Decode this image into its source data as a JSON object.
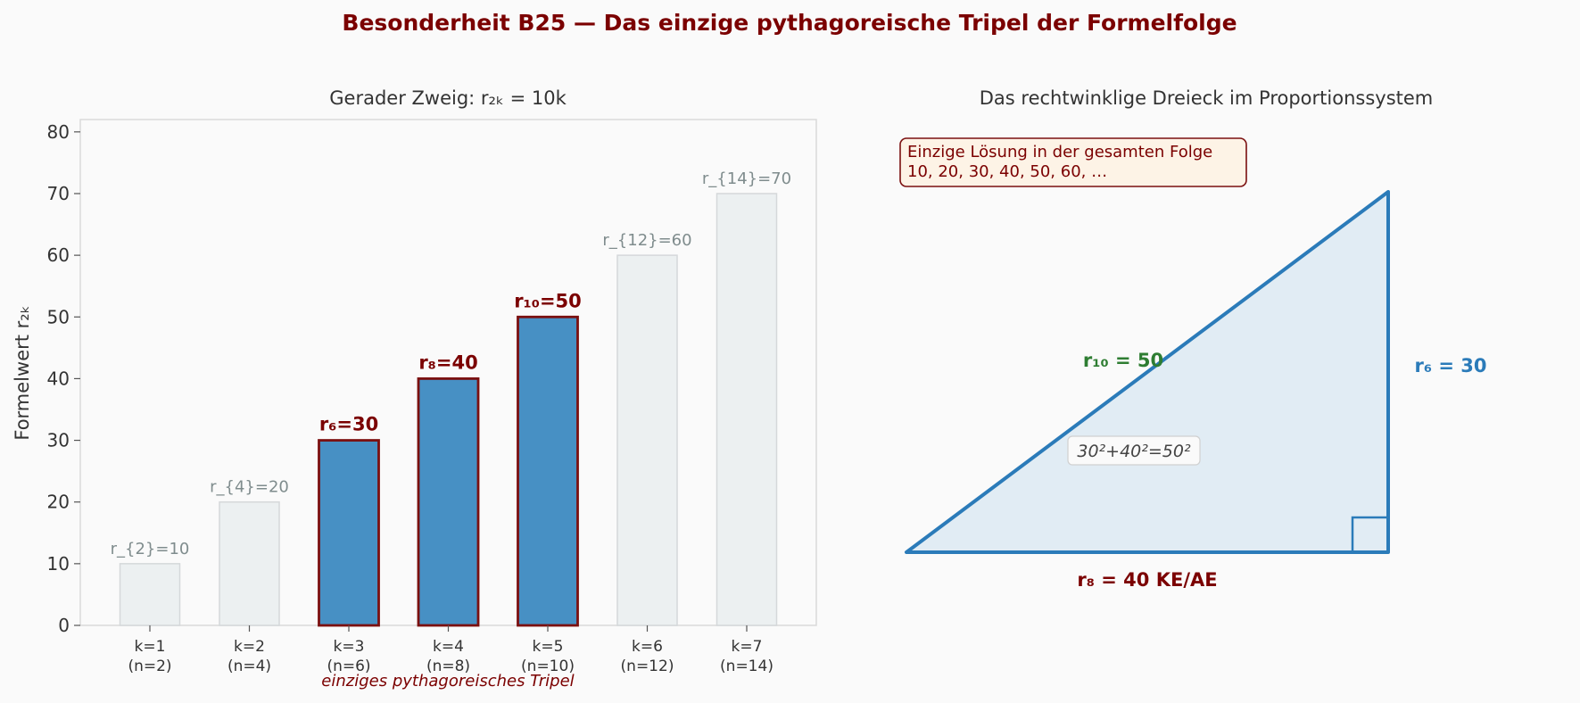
{
  "title": "Besonderheit B25 — Das einzige pythagoreische Tripel der Formelfolge",
  "chart_data": [
    {
      "type": "bar",
      "title": "Gerader Zweig: r₂ₖ = 10k",
      "ylabel": "Formelwert r₂ₖ",
      "ylim": [
        0,
        82
      ],
      "yticks": [
        0,
        10,
        20,
        30,
        40,
        50,
        60,
        70,
        80
      ],
      "categories": [
        "k=1\n(n=2)",
        "k=2\n(n=4)",
        "k=3\n(n=6)",
        "k=4\n(n=8)",
        "k=5\n(n=10)",
        "k=6\n(n=12)",
        "k=7\n(n=14)"
      ],
      "values": [
        10,
        20,
        30,
        40,
        50,
        60,
        70
      ],
      "bar_labels": [
        "r_{2}=10",
        "r_{4}=20",
        "r₆=30",
        "r₈=40",
        "r₁₀=50",
        "r_{12}=60",
        "r_{14}=70"
      ],
      "highlighted": [
        false,
        false,
        true,
        true,
        true,
        false,
        false
      ],
      "highlight_note": "einziges pythagoreisches Tripel",
      "grid": false,
      "colors": {
        "highlight_fill": "#4790c4",
        "highlight_edge": "#7b1010",
        "dim_fill": "#ecf0f1",
        "dim_edge": "#d5d8da",
        "dim_label": "#7f8c8d",
        "accent": "#7b0000"
      }
    },
    {
      "type": "diagram",
      "title": "Das rechtwinklige Dreieck im Proportionssystem",
      "legs": {
        "base": 40,
        "height": 30,
        "hypotenuse": 50
      },
      "labels": {
        "base": "r₈ = 40 KE/AE",
        "height": "r₆ = 30",
        "hypotenuse": "r₁₀ = 50",
        "equation": "30²+40²=50²"
      },
      "note_lines": [
        "Einzige Lösung in der gesamten Folge",
        "10, 20, 30, 40, 50, 60, …"
      ],
      "colors": {
        "triangle_stroke": "#2b7bb9",
        "triangle_fill": "#e1ecf4",
        "base_label": "#7b0000",
        "height_label": "#2b7bb9",
        "hyp_label": "#2e7d32",
        "note_fill": "#fdf3e6",
        "note_edge": "#7b1010"
      }
    }
  ]
}
